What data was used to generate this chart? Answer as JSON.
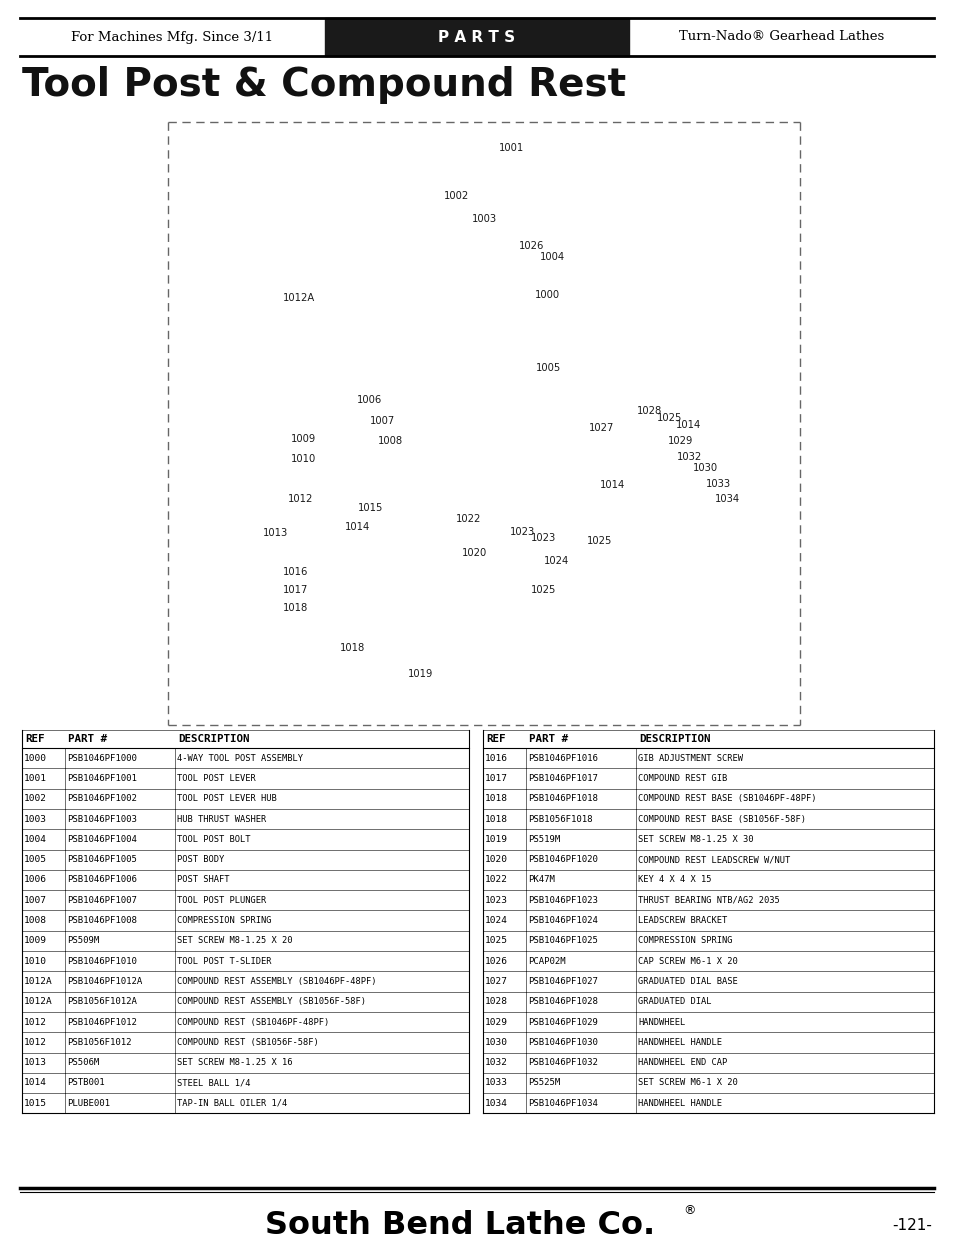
{
  "page_bg": "#ffffff",
  "header_bg": "#1a1a1a",
  "header_left": "For Machines Mfg. Since 3/11",
  "header_center": "P A R T S",
  "header_right": "Turn-Nado® Gearhead Lathes",
  "title": "Tool Post & Compound Rest",
  "footer_brand": "South Bend Lathe Co.",
  "footer_page": "-121-",
  "table_headers": [
    "REF",
    "PART #",
    "DESCRIPTION"
  ],
  "table_left": [
    [
      "1000",
      "PSB1046PF1000",
      "4-WAY TOOL POST ASSEMBLY"
    ],
    [
      "1001",
      "PSB1046PF1001",
      "TOOL POST LEVER"
    ],
    [
      "1002",
      "PSB1046PF1002",
      "TOOL POST LEVER HUB"
    ],
    [
      "1003",
      "PSB1046PF1003",
      "HUB THRUST WASHER"
    ],
    [
      "1004",
      "PSB1046PF1004",
      "TOOL POST BOLT"
    ],
    [
      "1005",
      "PSB1046PF1005",
      "POST BODY"
    ],
    [
      "1006",
      "PSB1046PF1006",
      "POST SHAFT"
    ],
    [
      "1007",
      "PSB1046PF1007",
      "TOOL POST PLUNGER"
    ],
    [
      "1008",
      "PSB1046PF1008",
      "COMPRESSION SPRING"
    ],
    [
      "1009",
      "PS509M",
      "SET SCREW M8-1.25 X 20"
    ],
    [
      "1010",
      "PSB1046PF1010",
      "TOOL POST T-SLIDER"
    ],
    [
      "1012A",
      "PSB1046PF1012A",
      "COMPOUND REST ASSEMBLY (SB1046PF-48PF)"
    ],
    [
      "1012A",
      "PSB1056F1012A",
      "COMPOUND REST ASSEMBLY (SB1056F-58F)"
    ],
    [
      "1012",
      "PSB1046PF1012",
      "COMPOUND REST (SB1046PF-48PF)"
    ],
    [
      "1012",
      "PSB1056F1012",
      "COMPOUND REST (SB1056F-58F)"
    ],
    [
      "1013",
      "PS506M",
      "SET SCREW M8-1.25 X 16"
    ],
    [
      "1014",
      "PSTB001",
      "STEEL BALL 1/4"
    ],
    [
      "1015",
      "PLUBE001",
      "TAP-IN BALL OILER 1/4"
    ]
  ],
  "table_right": [
    [
      "1016",
      "PSB1046PF1016",
      "GIB ADJUSTMENT SCREW"
    ],
    [
      "1017",
      "PSB1046PF1017",
      "COMPOUND REST GIB"
    ],
    [
      "1018",
      "PSB1046PF1018",
      "COMPOUND REST BASE (SB1046PF-48PF)"
    ],
    [
      "1018",
      "PSB1056F1018",
      "COMPOUND REST BASE (SB1056F-58F)"
    ],
    [
      "1019",
      "PS519M",
      "SET SCREW M8-1.25 X 30"
    ],
    [
      "1020",
      "PSB1046PF1020",
      "COMPOUND REST LEADSCREW W/NUT"
    ],
    [
      "1022",
      "PK47M",
      "KEY 4 X 4 X 15"
    ],
    [
      "1023",
      "PSB1046PF1023",
      "THRUST BEARING NTB/AG2 2035"
    ],
    [
      "1024",
      "PSB1046PF1024",
      "LEADSCREW BRACKET"
    ],
    [
      "1025",
      "PSB1046PF1025",
      "COMPRESSION SPRING"
    ],
    [
      "1026",
      "PCAP02M",
      "CAP SCREW M6-1 X 20"
    ],
    [
      "1027",
      "PSB1046PF1027",
      "GRADUATED DIAL BASE"
    ],
    [
      "1028",
      "PSB1046PF1028",
      "GRADUATED DIAL"
    ],
    [
      "1029",
      "PSB1046PF1029",
      "HANDWHEEL"
    ],
    [
      "1030",
      "PSB1046PF1030",
      "HANDWHEEL HANDLE"
    ],
    [
      "1032",
      "PSB1046PF1032",
      "HANDWHEEL END CAP"
    ],
    [
      "1033",
      "PS525M",
      "SET SCREW M6-1 X 20"
    ],
    [
      "1034",
      "PSB1046PF1034",
      "HANDWHEEL HANDLE"
    ]
  ]
}
